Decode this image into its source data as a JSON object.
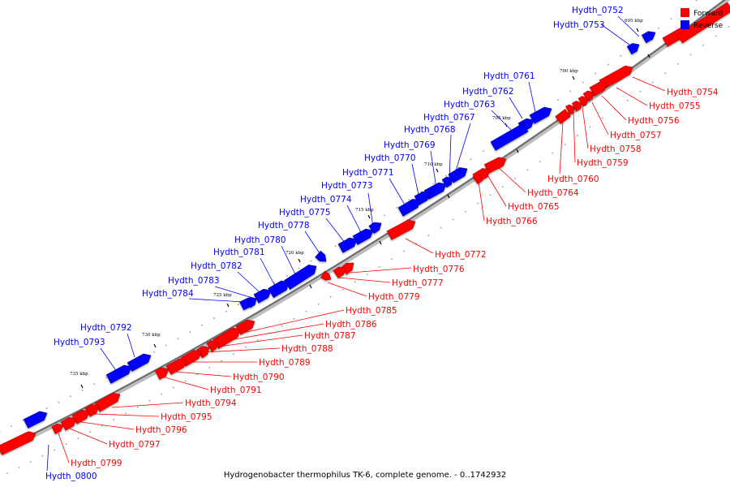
{
  "caption": "Hydrogenobacter thermophilus TK-6, complete genome. - 0..1742932",
  "legend": {
    "forward_label": "Forward",
    "reverse_label": "Reverse",
    "forward_color": "#ff0000",
    "reverse_color": "#0000ff"
  },
  "ticks": [
    "695 kbp",
    "700 kbp",
    "705 kbp",
    "710 kbp",
    "715 kbp",
    "720 kbp",
    "725 kbp",
    "730 kbp",
    "735 kbp"
  ],
  "genes": [
    {
      "name": "Hydth_0752",
      "strand": "reverse"
    },
    {
      "name": "Hydth_0753",
      "strand": "reverse"
    },
    {
      "name": "Hydth_0754",
      "strand": "forward"
    },
    {
      "name": "Hydth_0755",
      "strand": "forward"
    },
    {
      "name": "Hydth_0756",
      "strand": "forward"
    },
    {
      "name": "Hydth_0757",
      "strand": "forward"
    },
    {
      "name": "Hydth_0758",
      "strand": "forward"
    },
    {
      "name": "Hydth_0759",
      "strand": "forward"
    },
    {
      "name": "Hydth_0760",
      "strand": "forward"
    },
    {
      "name": "Hydth_0761",
      "strand": "reverse"
    },
    {
      "name": "Hydth_0762",
      "strand": "reverse"
    },
    {
      "name": "Hydth_0763",
      "strand": "reverse"
    },
    {
      "name": "Hydth_0764",
      "strand": "forward"
    },
    {
      "name": "Hydth_0765",
      "strand": "forward"
    },
    {
      "name": "Hydth_0766",
      "strand": "forward"
    },
    {
      "name": "Hydth_0767",
      "strand": "reverse"
    },
    {
      "name": "Hydth_0768",
      "strand": "reverse"
    },
    {
      "name": "Hydth_0769",
      "strand": "reverse"
    },
    {
      "name": "Hydth_0770",
      "strand": "reverse"
    },
    {
      "name": "Hydth_0771",
      "strand": "reverse"
    },
    {
      "name": "Hydth_0772",
      "strand": "forward"
    },
    {
      "name": "Hydth_0773",
      "strand": "reverse"
    },
    {
      "name": "Hydth_0774",
      "strand": "reverse"
    },
    {
      "name": "Hydth_0775",
      "strand": "reverse"
    },
    {
      "name": "Hydth_0776",
      "strand": "forward"
    },
    {
      "name": "Hydth_0777",
      "strand": "forward"
    },
    {
      "name": "Hydth_0778",
      "strand": "reverse"
    },
    {
      "name": "Hydth_0779",
      "strand": "forward"
    },
    {
      "name": "Hydth_0780",
      "strand": "reverse"
    },
    {
      "name": "Hydth_0781",
      "strand": "reverse"
    },
    {
      "name": "Hydth_0782",
      "strand": "reverse"
    },
    {
      "name": "Hydth_0783",
      "strand": "reverse"
    },
    {
      "name": "Hydth_0784",
      "strand": "reverse"
    },
    {
      "name": "Hydth_0785",
      "strand": "forward"
    },
    {
      "name": "Hydth_0786",
      "strand": "forward"
    },
    {
      "name": "Hydth_0787",
      "strand": "forward"
    },
    {
      "name": "Hydth_0788",
      "strand": "forward"
    },
    {
      "name": "Hydth_0789",
      "strand": "forward"
    },
    {
      "name": "Hydth_0790",
      "strand": "forward"
    },
    {
      "name": "Hydth_0791",
      "strand": "forward"
    },
    {
      "name": "Hydth_0792",
      "strand": "reverse"
    },
    {
      "name": "Hydth_0793",
      "strand": "reverse"
    },
    {
      "name": "Hydth_0794",
      "strand": "forward"
    },
    {
      "name": "Hydth_0795",
      "strand": "forward"
    },
    {
      "name": "Hydth_0796",
      "strand": "forward"
    },
    {
      "name": "Hydth_0797",
      "strand": "forward"
    },
    {
      "name": "Hydth_0799",
      "strand": "forward"
    },
    {
      "name": "Hydth_0800",
      "strand": "reverse"
    }
  ]
}
